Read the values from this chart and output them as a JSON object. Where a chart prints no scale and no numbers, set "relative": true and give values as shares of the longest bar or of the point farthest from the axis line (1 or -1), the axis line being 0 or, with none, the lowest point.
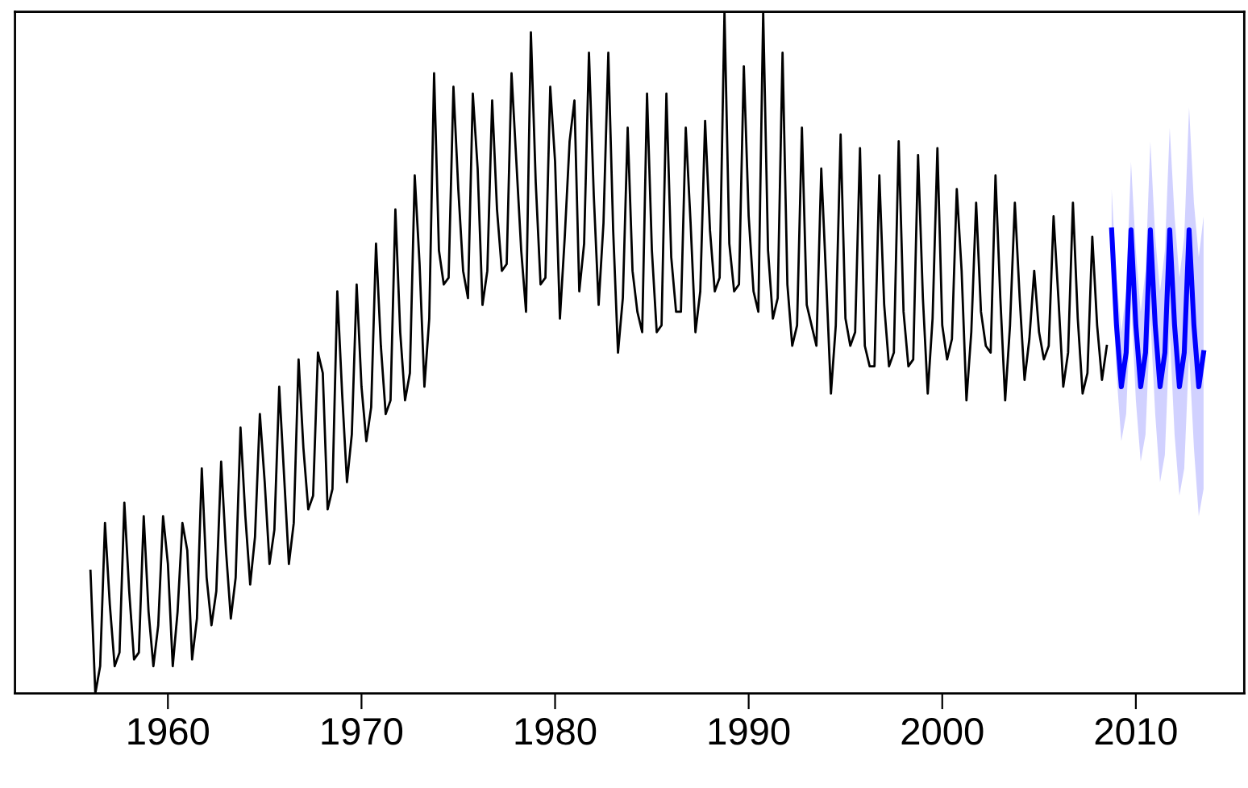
{
  "chart_data": {
    "type": "line",
    "relative": true,
    "xlim": [
      1952.1,
      2015.6
    ],
    "xticks": [
      1960,
      1970,
      1980,
      1990,
      2000,
      2010
    ],
    "grid": false,
    "legend": false,
    "marker": "none",
    "line_style": "solid",
    "series": [
      {
        "color": "#000000",
        "x": [
          1956,
          1956.25,
          1956.5,
          1956.75,
          1957,
          1957.25,
          1957.5,
          1957.75,
          1958,
          1958.25,
          1958.5,
          1958.75,
          1959,
          1959.25,
          1959.5,
          1959.75,
          1960,
          1960.25,
          1960.5,
          1960.75,
          1961,
          1961.25,
          1961.5,
          1961.75,
          1962,
          1962.25,
          1962.5,
          1962.75,
          1963,
          1963.25,
          1963.5,
          1963.75,
          1964,
          1964.25,
          1964.5,
          1964.75,
          1965,
          1965.25,
          1965.5,
          1965.75,
          1966,
          1966.25,
          1966.5,
          1966.75,
          1967,
          1967.25,
          1967.5,
          1967.75,
          1968,
          1968.25,
          1968.5,
          1968.75,
          1969,
          1969.25,
          1969.5,
          1969.75,
          1970,
          1970.25,
          1970.5,
          1970.75,
          1971,
          1971.25,
          1971.5,
          1971.75,
          1972,
          1972.25,
          1972.5,
          1972.75,
          1973,
          1973.25,
          1973.5,
          1973.75,
          1974,
          1974.25,
          1974.5,
          1974.75,
          1975,
          1975.25,
          1975.5,
          1975.75,
          1976,
          1976.25,
          1976.5,
          1976.75,
          1977,
          1977.25,
          1977.5,
          1977.75,
          1978,
          1978.25,
          1978.5,
          1978.75,
          1979,
          1979.25,
          1979.5,
          1979.75,
          1980,
          1980.25,
          1980.5,
          1980.75,
          1981,
          1981.25,
          1981.5,
          1981.75,
          1982,
          1982.25,
          1982.5,
          1982.75,
          1983,
          1983.25,
          1983.5,
          1983.75,
          1984,
          1984.25,
          1984.5,
          1984.75,
          1985,
          1985.25,
          1985.5,
          1985.75,
          1986,
          1986.25,
          1986.5,
          1986.75,
          1987,
          1987.25,
          1987.5,
          1987.75,
          1988,
          1988.25,
          1988.5,
          1988.75,
          1989,
          1989.25,
          1989.5,
          1989.75,
          1990,
          1990.25,
          1990.5,
          1990.75,
          1991,
          1991.25,
          1991.5,
          1991.75,
          1992,
          1992.25,
          1992.5,
          1992.75,
          1993,
          1993.25,
          1993.5,
          1993.75,
          1994,
          1994.25,
          1994.5,
          1994.75,
          1995,
          1995.25,
          1995.5,
          1995.75,
          1996,
          1996.25,
          1996.5,
          1996.75,
          1997,
          1997.25,
          1997.5,
          1997.75,
          1998,
          1998.25,
          1998.5,
          1998.75,
          1999,
          1999.25,
          1999.5,
          1999.75,
          2000,
          2000.25,
          2000.5,
          2000.75,
          2001,
          2001.25,
          2001.5,
          2001.75,
          2002,
          2002.25,
          2002.5,
          2002.75,
          2003,
          2003.25,
          2003.5,
          2003.75,
          2004,
          2004.25,
          2004.5,
          2004.75,
          2005,
          2005.25,
          2005.5,
          2005.75,
          2006,
          2006.25,
          2006.5,
          2006.75,
          2007,
          2007.25,
          2007.5,
          2007.75,
          2008,
          2008.25,
          2008.5
        ],
        "values": [
          0.18,
          0,
          0.04,
          0.25,
          0.13,
          0.04,
          0.06,
          0.28,
          0.15,
          0.05,
          0.06,
          0.26,
          0.12,
          0.04,
          0.1,
          0.26,
          0.19,
          0.04,
          0.12,
          0.25,
          0.21,
          0.05,
          0.11,
          0.33,
          0.17,
          0.1,
          0.15,
          0.34,
          0.21,
          0.11,
          0.17,
          0.39,
          0.26,
          0.16,
          0.23,
          0.41,
          0.31,
          0.19,
          0.24,
          0.45,
          0.32,
          0.19,
          0.25,
          0.49,
          0.36,
          0.27,
          0.29,
          0.5,
          0.47,
          0.27,
          0.3,
          0.59,
          0.44,
          0.31,
          0.38,
          0.6,
          0.45,
          0.37,
          0.42,
          0.66,
          0.51,
          0.41,
          0.43,
          0.71,
          0.53,
          0.43,
          0.47,
          0.76,
          0.63,
          0.45,
          0.55,
          0.91,
          0.65,
          0.6,
          0.61,
          0.89,
          0.74,
          0.62,
          0.58,
          0.88,
          0.77,
          0.57,
          0.62,
          0.87,
          0.71,
          0.62,
          0.63,
          0.91,
          0.78,
          0.65,
          0.56,
          0.97,
          0.75,
          0.6,
          0.61,
          0.89,
          0.78,
          0.55,
          0.67,
          0.81,
          0.87,
          0.59,
          0.66,
          0.94,
          0.73,
          0.57,
          0.69,
          0.94,
          0.68,
          0.5,
          0.58,
          0.83,
          0.62,
          0.56,
          0.53,
          0.88,
          0.65,
          0.53,
          0.54,
          0.88,
          0.64,
          0.56,
          0.56,
          0.83,
          0.69,
          0.53,
          0.59,
          0.84,
          0.68,
          0.59,
          0.61,
          1.0,
          0.66,
          0.59,
          0.6,
          0.92,
          0.7,
          0.59,
          0.56,
          1.0,
          0.65,
          0.55,
          0.58,
          0.94,
          0.6,
          0.51,
          0.54,
          0.83,
          0.57,
          0.54,
          0.51,
          0.77,
          0.61,
          0.44,
          0.54,
          0.82,
          0.55,
          0.51,
          0.53,
          0.8,
          0.51,
          0.48,
          0.48,
          0.76,
          0.57,
          0.48,
          0.5,
          0.81,
          0.56,
          0.48,
          0.49,
          0.79,
          0.58,
          0.44,
          0.55,
          0.8,
          0.54,
          0.49,
          0.52,
          0.74,
          0.62,
          0.43,
          0.53,
          0.72,
          0.56,
          0.51,
          0.5,
          0.76,
          0.58,
          0.43,
          0.54,
          0.72,
          0.58,
          0.46,
          0.52,
          0.62,
          0.53,
          0.49,
          0.51,
          0.7,
          0.58,
          0.45,
          0.5,
          0.72,
          0.55,
          0.44,
          0.47,
          0.67,
          0.54,
          0.46,
          0.51
        ]
      },
      {
        "color": "#0000ff",
        "x": [
          2008.75,
          2009,
          2009.25,
          2009.5,
          2009.75,
          2010,
          2010.25,
          2010.5,
          2010.75,
          2011,
          2011.25,
          2011.5,
          2011.75,
          2012,
          2012.25,
          2012.5,
          2012.75,
          2013,
          2013.25,
          2013.5
        ],
        "values": [
          0.68,
          0.54,
          0.45,
          0.5,
          0.68,
          0.54,
          0.45,
          0.5,
          0.68,
          0.54,
          0.45,
          0.5,
          0.68,
          0.54,
          0.45,
          0.5,
          0.68,
          0.54,
          0.45,
          0.5
        ],
        "upper": [
          0.74,
          0.61,
          0.53,
          0.59,
          0.78,
          0.65,
          0.56,
          0.62,
          0.81,
          0.67,
          0.59,
          0.65,
          0.83,
          0.7,
          0.61,
          0.67,
          0.86,
          0.72,
          0.64,
          0.7
        ],
        "lower": [
          0.62,
          0.47,
          0.37,
          0.41,
          0.58,
          0.43,
          0.34,
          0.38,
          0.55,
          0.41,
          0.31,
          0.35,
          0.53,
          0.38,
          0.29,
          0.33,
          0.5,
          0.36,
          0.26,
          0.3
        ]
      }
    ]
  }
}
